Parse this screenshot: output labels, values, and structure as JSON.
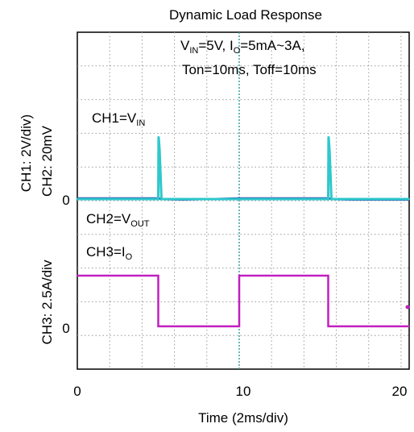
{
  "chart_data": {
    "type": "line",
    "title": "Dynamic Load Response",
    "xlabel": "Time (2ms/div)",
    "x_ticks": [
      "0",
      "10",
      "20"
    ],
    "xlim": [
      0,
      20.5
    ],
    "ylabel_upper_1": "CH1: 2V/div)",
    "ylabel_upper_2": "CH2: 20mV",
    "ylabel_lower": "CH3: 2.5A/div",
    "zero_label_ch12": "0",
    "zero_label_ch3": "0",
    "grid": true,
    "annotation": {
      "line1": {
        "a": "V",
        "a_sub": "IN",
        "b": "=5V, I",
        "b_sub": "O",
        "c": "=5mA~3A,"
      },
      "line2": "Ton=10ms, Toff=10ms"
    },
    "channel_labels": {
      "ch1": {
        "prefix": "CH1=V",
        "sub": "IN"
      },
      "ch2": {
        "prefix": "CH2=V",
        "sub": "OUT"
      },
      "ch3": {
        "prefix": "CH3=I",
        "sub": "O"
      }
    },
    "series": [
      {
        "key": "ch1",
        "color": "#2f3fb0",
        "x": [
          0,
          5,
          5.3,
          6.5,
          10,
          15.5,
          15.8,
          17,
          20.5
        ],
        "y": [
          5,
          5,
          4.95,
          4.93,
          5,
          5,
          4.95,
          4.93,
          4.93
        ]
      },
      {
        "key": "ch2",
        "color": "#2ec8cc",
        "x": [
          0,
          5,
          5.02,
          5.08,
          5.2,
          10,
          15.5,
          15.52,
          15.58,
          15.7,
          20.5
        ],
        "y": [
          0,
          0,
          6.2,
          4.9,
          0,
          0,
          0,
          6.2,
          4.9,
          0,
          0
        ]
      },
      {
        "key": "ch3",
        "color": "#c020c0",
        "x": [
          0,
          5,
          5,
          10,
          10,
          15.5,
          15.5,
          20.5
        ],
        "y": [
          3,
          3,
          0.005,
          0.005,
          3,
          3,
          0.005,
          0.005
        ]
      }
    ]
  }
}
